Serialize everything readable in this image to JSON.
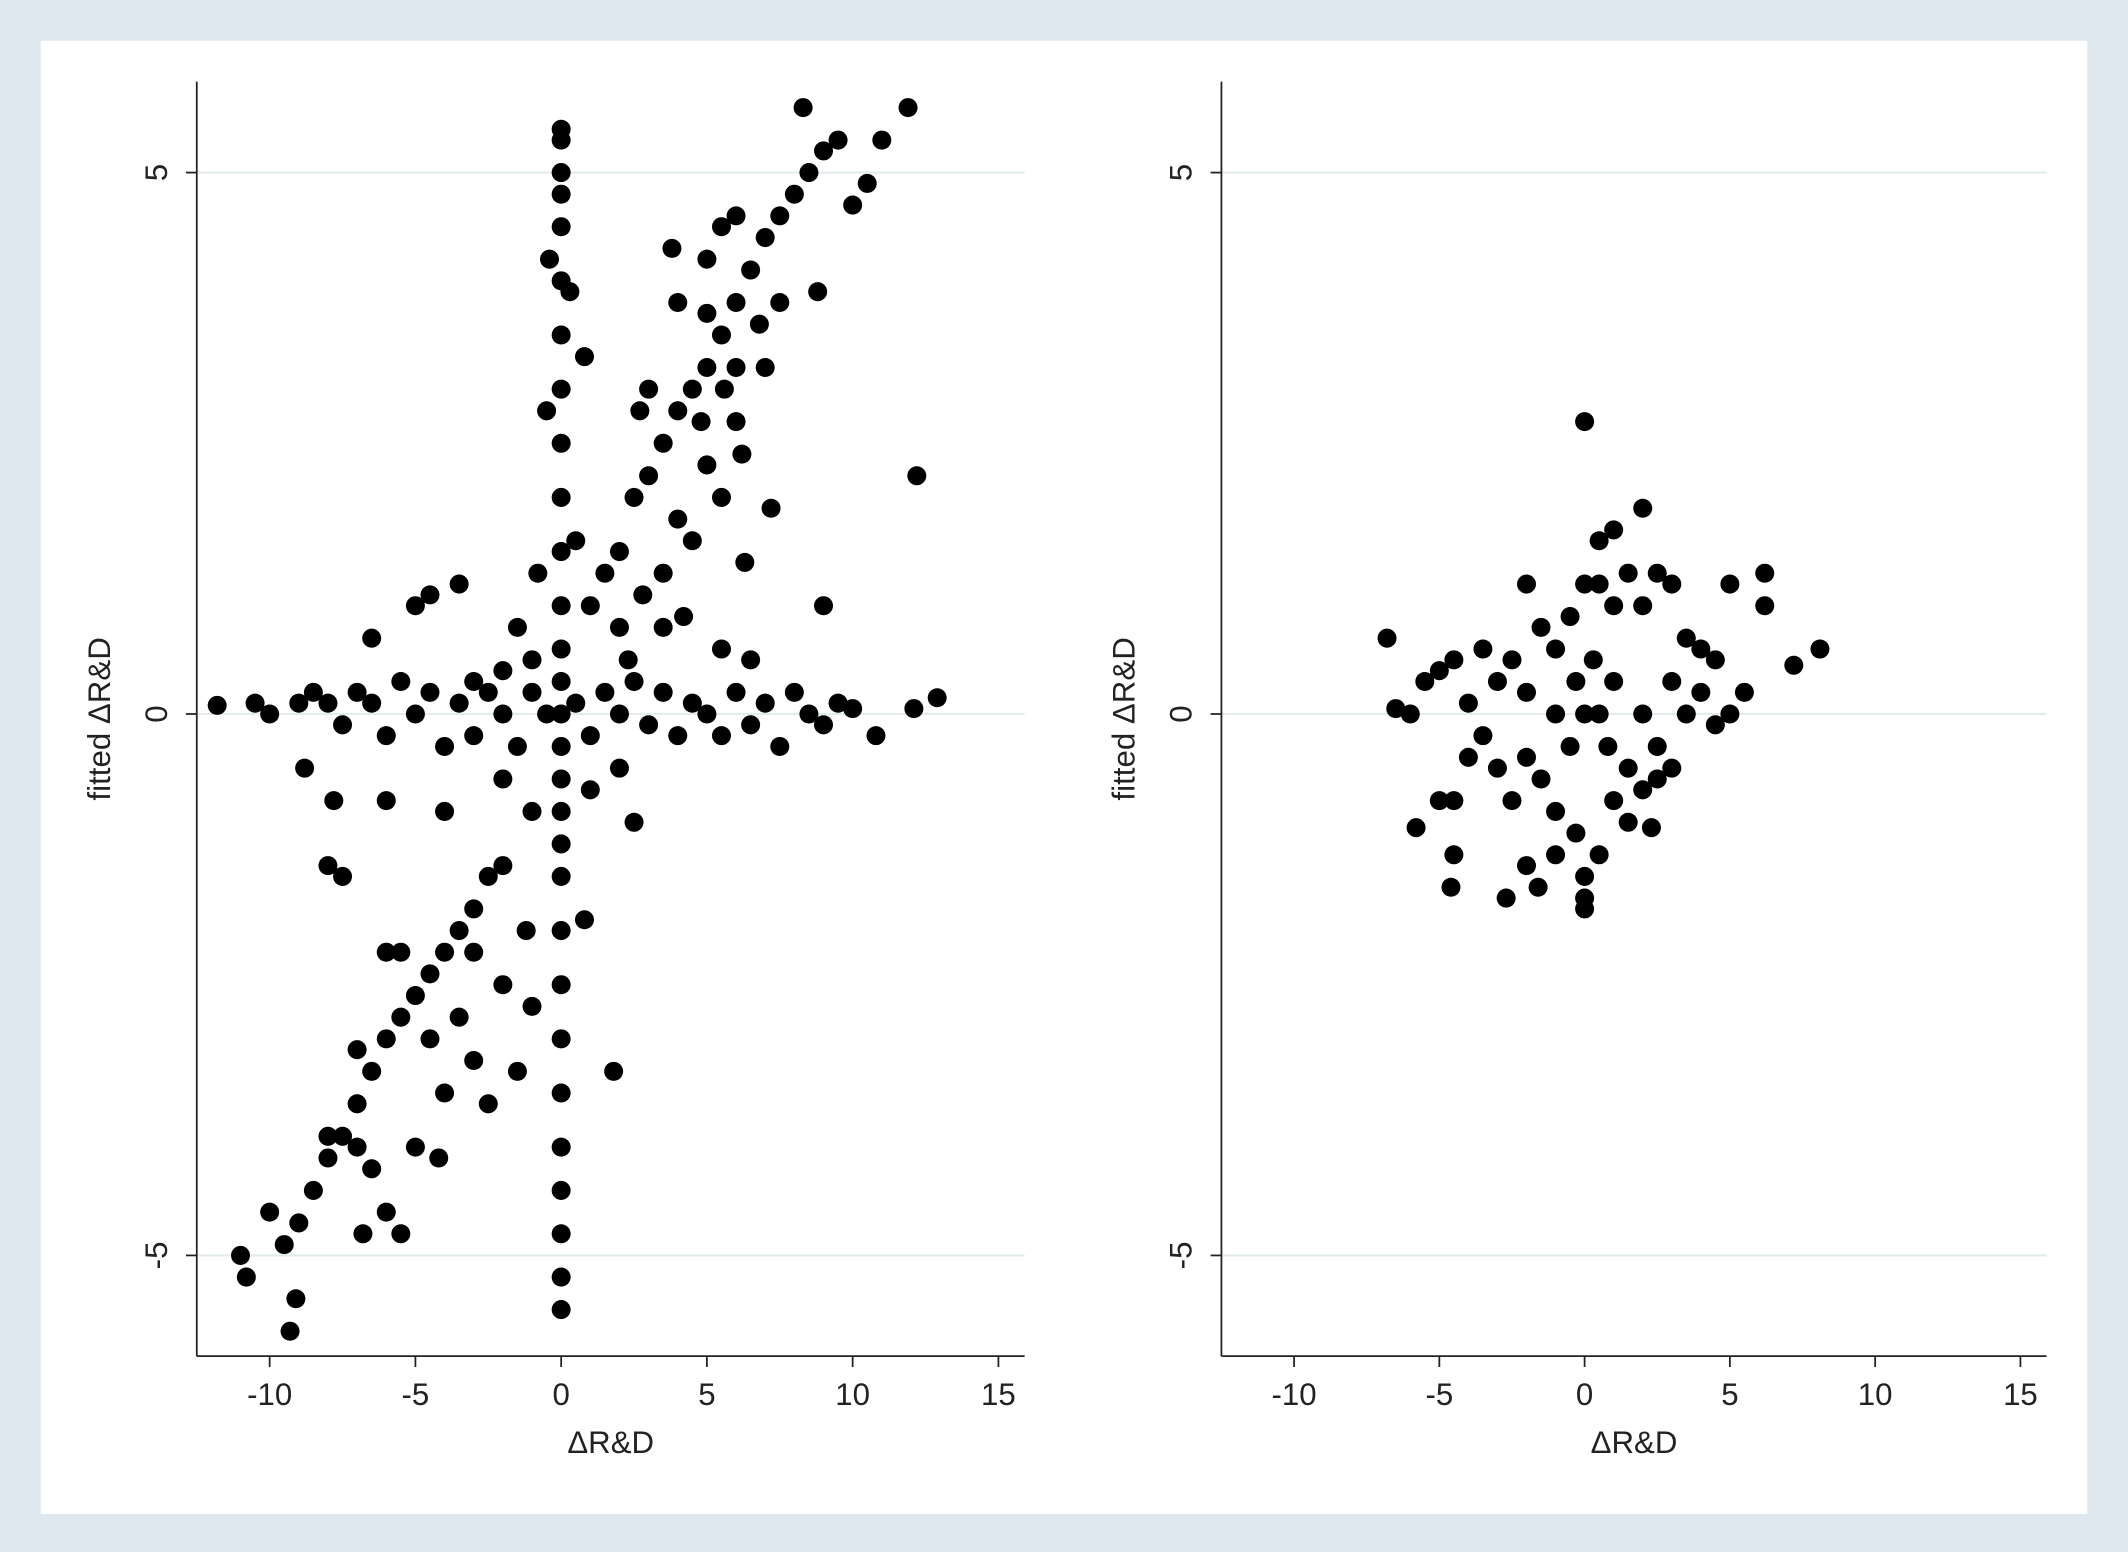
{
  "chart_data": [
    {
      "type": "scatter",
      "xlabel": "ΔR&D",
      "ylabel": "fitted ΔR&D",
      "color": "#000000",
      "grid": true,
      "xlim": [
        -12.5,
        15.9
      ],
      "ylim": [
        -5.93,
        5.84
      ],
      "xticks": [
        -10,
        -5,
        0,
        5,
        10,
        15
      ],
      "yticks": [
        -5,
        0,
        5
      ],
      "x": [
        0,
        0,
        0,
        0,
        0,
        0,
        0,
        0,
        0,
        0,
        0,
        0,
        0,
        0,
        0,
        0,
        0,
        0,
        0,
        0,
        0,
        0,
        0,
        0,
        0,
        0,
        0,
        0,
        0,
        -0.4,
        0.3,
        -0.5,
        0.8,
        2,
        2.5,
        3,
        3.5,
        4,
        4.5,
        5,
        5.5,
        6,
        6.5,
        7,
        7.5,
        8,
        8.5,
        9,
        9.5,
        10,
        10.5,
        11,
        11.9,
        8.3,
        4,
        5,
        6,
        7,
        3,
        4,
        5,
        6,
        3.5,
        4.5,
        5.5,
        6.2,
        7.2,
        6.3,
        2.7,
        3.8,
        5.5,
        7.5,
        8.8,
        5,
        4.8,
        6,
        5.6,
        6.8,
        1,
        1.5,
        2,
        2.8,
        3.5,
        4.2,
        5.5,
        6.5,
        -1,
        -2,
        -3,
        -1.5,
        -0.8,
        0.5,
        2.3,
        9,
        -2,
        -1,
        1,
        2.5,
        2,
        -11.8,
        -10.5,
        -10,
        -9,
        -8.5,
        -8,
        -7.5,
        -7,
        -6.5,
        -6,
        -5.5,
        -5,
        -4.5,
        -4,
        -3.5,
        -3,
        -2.5,
        -2,
        -1.5,
        -1,
        -0.5,
        0.5,
        1,
        1.5,
        2,
        2.5,
        3,
        3.5,
        4,
        4.5,
        5,
        5.5,
        6,
        6.5,
        7,
        7.5,
        8,
        8.5,
        9,
        9.5,
        10,
        10.8,
        12.1,
        12.9,
        12.2,
        -5,
        -4.5,
        -3.5,
        -6.5,
        -8.8,
        -7.8,
        -6,
        -4,
        -2,
        -2.5,
        -3,
        -3.5,
        -4,
        -4.5,
        -5,
        -5.5,
        -6,
        -6.5,
        -7,
        -7.5,
        -8,
        -8.5,
        -9,
        -9.5,
        -10,
        -11,
        -10.8,
        -9.3,
        -9.1,
        -8,
        -7,
        -6.5,
        -6,
        -5.5,
        -5,
        -4,
        -3,
        -2.5,
        -1.5,
        -2,
        -1,
        -3.5,
        -4.5,
        -5.5,
        -6,
        -7,
        -6.8,
        -4.2,
        -3,
        -1.2,
        1.8,
        0.8,
        -8,
        -7.5
      ],
      "y": [
        -5.5,
        -5.2,
        -4.8,
        -4.4,
        -4,
        -3.5,
        -3,
        -2.5,
        -2,
        -1.5,
        -1.2,
        -0.9,
        -0.6,
        -0.3,
        0,
        0.3,
        0.6,
        1,
        1.5,
        2,
        2.5,
        3,
        3.5,
        4,
        4.5,
        4.8,
        5,
        5.3,
        5.4,
        4.2,
        3.9,
        2.8,
        3.3,
        1.5,
        2,
        2.2,
        2.5,
        2.8,
        3,
        3.2,
        3.5,
        3.8,
        4.1,
        4.4,
        4.6,
        4.8,
        5,
        5.2,
        5.3,
        4.7,
        4.9,
        5.3,
        5.6,
        5.6,
        1.8,
        2.3,
        2.7,
        3.2,
        3,
        3.8,
        4.2,
        4.6,
        1.3,
        1.6,
        2,
        2.4,
        1.9,
        1.4,
        2.8,
        4.3,
        4.5,
        3.8,
        3.9,
        3.7,
        2.7,
        3.2,
        3,
        3.6,
        1,
        1.3,
        0.8,
        1.1,
        0.8,
        0.9,
        0.6,
        0.5,
        0.5,
        0.4,
        0.3,
        0.8,
        1.3,
        1.6,
        0.5,
        1,
        -0.6,
        -0.9,
        -0.7,
        -1,
        -0.5,
        0.08,
        0.1,
        0,
        0.1,
        0.2,
        0.1,
        -0.1,
        0.2,
        0.1,
        -0.2,
        0.3,
        0,
        0.2,
        -0.3,
        0.1,
        -0.2,
        0.2,
        0,
        -0.3,
        0.2,
        0,
        0.1,
        -0.2,
        0.2,
        0,
        0.3,
        -0.1,
        0.2,
        -0.2,
        0.1,
        0,
        -0.2,
        0.2,
        -0.1,
        0.1,
        -0.3,
        0.2,
        0,
        -0.1,
        0.1,
        0.05,
        -0.2,
        0.05,
        0.15,
        2.2,
        1,
        1.1,
        1.2,
        0.7,
        -0.5,
        -0.8,
        -0.8,
        -0.9,
        -1.4,
        -1.5,
        -1.8,
        -2,
        -2.2,
        -2.4,
        -2.6,
        -2.8,
        -3,
        -3.3,
        -3.6,
        -3.9,
        -4.1,
        -4.4,
        -4.7,
        -4.9,
        -4.6,
        -5,
        -5.2,
        -5.7,
        -5.4,
        -3.9,
        -4,
        -4.2,
        -4.6,
        -4.8,
        -4,
        -3.5,
        -3.2,
        -3.6,
        -3.3,
        -2.5,
        -2.7,
        -2.8,
        -3,
        -2.2,
        -2.2,
        -3.1,
        -4.8,
        -4.1,
        -2.2,
        -2,
        -3.3,
        -1.9,
        -1.4,
        -1.5
      ]
    },
    {
      "type": "scatter",
      "xlabel": "ΔR&D",
      "ylabel": "fitted ΔR&D",
      "color": "#000000",
      "grid": true,
      "xlim": [
        -12.5,
        15.9
      ],
      "ylim": [
        -5.93,
        5.84
      ],
      "xticks": [
        -10,
        -5,
        0,
        5,
        10,
        15
      ],
      "yticks": [
        -5,
        0,
        5
      ],
      "x": [
        0,
        2,
        1,
        0.5,
        -2,
        -6.8,
        -6.5,
        -6,
        -5.5,
        -5,
        -4.5,
        -4,
        -3.5,
        -3,
        -2.5,
        -2,
        -1.5,
        -1,
        -0.5,
        0,
        0.5,
        1,
        1.5,
        2,
        2.5,
        3,
        3.5,
        4,
        4.5,
        5,
        6.2,
        6.2,
        7.2,
        8.1,
        5.5,
        5,
        4.5,
        4,
        3.5,
        3,
        2.5,
        2,
        1.5,
        1,
        0.5,
        0,
        -0.5,
        -1,
        -1.5,
        -2,
        -2.5,
        -3,
        -3.5,
        -4,
        -4.5,
        -5,
        -5.8,
        -4.5,
        -4.6,
        -2.7,
        -2,
        -1.6,
        -1,
        -0.3,
        0,
        0,
        0,
        0.5,
        1,
        1.5,
        2,
        2.3,
        2.5,
        3,
        -1,
        0.3,
        -0.3,
        0.8
      ],
      "y": [
        2.7,
        1.9,
        1.7,
        1.6,
        1.2,
        0.7,
        0.05,
        0,
        0.3,
        0.4,
        0.5,
        0.1,
        0.6,
        0.3,
        0.5,
        0.2,
        0.8,
        0.6,
        0.9,
        1.2,
        1.2,
        1,
        1.3,
        1,
        1.3,
        1.2,
        0.7,
        0.6,
        0.5,
        1.2,
        1.3,
        1,
        0.45,
        0.6,
        0.2,
        0,
        -0.1,
        0.2,
        0,
        0.3,
        -0.3,
        0,
        -0.5,
        0.3,
        0,
        0,
        -0.3,
        0,
        -0.6,
        -0.4,
        -0.8,
        -0.5,
        -0.2,
        -0.4,
        -0.8,
        -0.8,
        -1.05,
        -1.3,
        -1.6,
        -1.7,
        -1.4,
        -1.6,
        -1.3,
        -1.1,
        -1.5,
        -1.8,
        -1.7,
        -1.3,
        -0.8,
        -1,
        -0.7,
        -1.05,
        -0.6,
        -0.5,
        -0.9,
        0.5,
        0.3,
        -0.3
      ]
    }
  ]
}
